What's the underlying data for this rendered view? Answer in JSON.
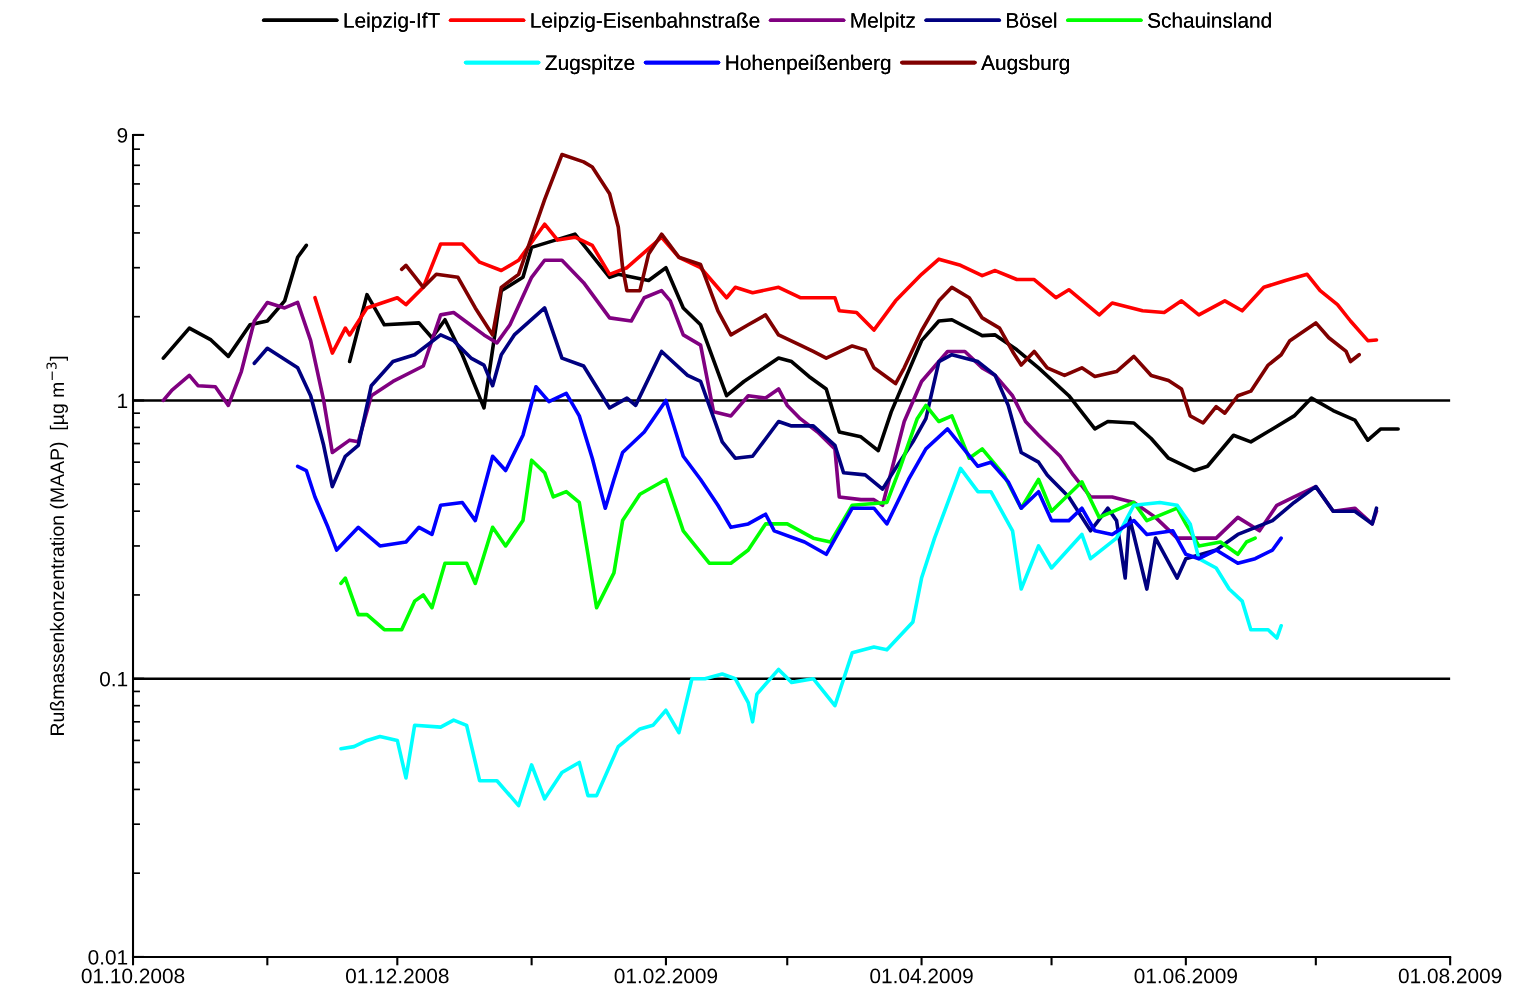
{
  "chart_data": {
    "type": "line",
    "ylabel": "Rußmassenkonzentration (MAAP)  [µg m$^{−3}$]",
    "log": "y",
    "legend": "top",
    "marker": "none",
    "line_style": "solid",
    "xlim": [
      "2008-10-01",
      "2009-08-01"
    ],
    "xticks": [
      {
        "value": "2008-10-01",
        "label": "01.10.2008"
      },
      {
        "value": "2008-11-01",
        "label": null
      },
      {
        "value": "2008-12-01",
        "label": "01.12.2008"
      },
      {
        "value": "2009-01-01",
        "label": null
      },
      {
        "value": "2009-02-01",
        "label": "01.02.2009"
      },
      {
        "value": "2009-03-01",
        "label": null
      },
      {
        "value": "2009-04-01",
        "label": "01.04.2009"
      },
      {
        "value": "2009-05-01",
        "label": null
      },
      {
        "value": "2009-06-01",
        "label": "01.06.2009"
      },
      {
        "value": "2009-07-01",
        "label": null
      },
      {
        "value": "2009-08-01",
        "label": "01.08.2009"
      }
    ],
    "ylim": [
      0.01,
      9
    ],
    "yticks": [
      0.01,
      0.1,
      1,
      9
    ],
    "ref_lines": [
      {
        "axis": "y",
        "value": 0.1,
        "color": "#000000"
      },
      {
        "axis": "y",
        "value": 1,
        "color": "#000000"
      }
    ],
    "series": [
      {
        "name": "Leipzig-IfT",
        "color": "#000000",
        "x": [
          "2008-10-08",
          "2008-10-14",
          "2008-10-19",
          "2008-10-23",
          "2008-10-28",
          "2008-11-01",
          "2008-11-05",
          "2008-11-08",
          "2008-11-10",
          "2008-11-15",
          "2008-11-20",
          "2008-11-24",
          "2008-11-28",
          "2008-12-06",
          "2008-12-09",
          "2008-12-12",
          "2008-12-16",
          "2008-12-21",
          "2008-12-25",
          "2008-12-30",
          "2009-01-01",
          "2009-01-11",
          "2009-01-19",
          "2009-01-21",
          "2009-01-28",
          "2009-02-01",
          "2009-02-05",
          "2009-02-09",
          "2009-02-15",
          "2009-02-19",
          "2009-02-27",
          "2009-03-02",
          "2009-03-06",
          "2009-03-10",
          "2009-03-13",
          "2009-03-18",
          "2009-03-22",
          "2009-03-25",
          "2009-04-01",
          "2009-04-05",
          "2009-04-08",
          "2009-04-15",
          "2009-04-18",
          "2009-04-23",
          "2009-04-28",
          "2009-05-05",
          "2009-05-11",
          "2009-05-14",
          "2009-05-20",
          "2009-05-24",
          "2009-05-28",
          "2009-06-03",
          "2009-06-06",
          "2009-06-12",
          "2009-06-16",
          "2009-06-21",
          "2009-06-26",
          "2009-06-30",
          "2009-07-05",
          "2009-07-10",
          "2009-07-13",
          "2009-07-16",
          "2009-07-20"
        ],
        "values": [
          1.42,
          1.82,
          1.65,
          1.44,
          1.87,
          1.93,
          2.28,
          3.27,
          3.61,
          null,
          1.38,
          2.4,
          1.87,
          1.9,
          1.68,
          1.95,
          1.46,
          0.94,
          2.48,
          2.77,
          3.55,
          3.96,
          2.77,
          2.84,
          2.7,
          3.0,
          2.15,
          1.87,
          1.04,
          1.17,
          1.42,
          1.38,
          1.22,
          1.1,
          0.77,
          0.74,
          0.66,
          0.91,
          1.64,
          1.93,
          1.95,
          1.71,
          1.72,
          1.52,
          1.31,
          1.04,
          0.79,
          0.84,
          0.83,
          0.73,
          0.62,
          0.56,
          0.58,
          0.75,
          0.71,
          0.79,
          0.88,
          1.02,
          0.92,
          0.85,
          0.72,
          0.79,
          0.79
        ]
      },
      {
        "name": "Leipzig-Eisenbahnstraße",
        "color": "#ff0000",
        "x": [
          "2008-11-12",
          "2008-11-16",
          "2008-11-19",
          "2008-11-20",
          "2008-11-24",
          "2008-12-01",
          "2008-12-03",
          "2008-12-07",
          "2008-12-11",
          "2008-12-16",
          "2008-12-20",
          "2008-12-25",
          "2008-12-29",
          "2009-01-04",
          "2009-01-07",
          "2009-01-11",
          "2009-01-15",
          "2009-01-19",
          "2009-01-23",
          "2009-01-31",
          "2009-02-04",
          "2009-02-09",
          "2009-02-15",
          "2009-02-17",
          "2009-02-21",
          "2009-02-27",
          "2009-03-04",
          "2009-03-12",
          "2009-03-13",
          "2009-03-17",
          "2009-03-21",
          "2009-03-26",
          "2009-04-01",
          "2009-04-05",
          "2009-04-10",
          "2009-04-15",
          "2009-04-18",
          "2009-04-23",
          "2009-04-27",
          "2009-05-02",
          "2009-05-05",
          "2009-05-12",
          "2009-05-15",
          "2009-05-22",
          "2009-05-27",
          "2009-05-31",
          "2009-06-04",
          "2009-06-10",
          "2009-06-14",
          "2009-06-19",
          "2009-06-24",
          "2009-06-29",
          "2009-07-02",
          "2009-07-06",
          "2009-07-09",
          "2009-07-13",
          "2009-07-15"
        ],
        "values": [
          2.34,
          1.48,
          1.82,
          1.72,
          2.15,
          2.34,
          2.21,
          2.55,
          3.65,
          3.65,
          3.14,
          2.93,
          3.19,
          4.3,
          3.77,
          3.86,
          3.61,
          2.84,
          3.0,
          3.86,
          3.27,
          3.0,
          2.34,
          2.55,
          2.44,
          2.55,
          2.34,
          2.34,
          2.1,
          2.07,
          1.79,
          2.28,
          2.84,
          3.22,
          3.06,
          2.81,
          2.93,
          2.72,
          2.72,
          2.34,
          2.5,
          2.03,
          2.24,
          2.1,
          2.07,
          2.28,
          2.03,
          2.28,
          2.1,
          2.55,
          2.7,
          2.84,
          2.48,
          2.21,
          1.93,
          1.64,
          1.65
        ]
      },
      {
        "name": "Melpitz",
        "color": "#800080",
        "x": [
          "2008-10-08",
          "2008-10-10",
          "2008-10-14",
          "2008-10-16",
          "2008-10-20",
          "2008-10-23",
          "2008-10-26",
          "2008-10-29",
          "2008-11-01",
          "2008-11-05",
          "2008-11-08",
          "2008-11-11",
          "2008-11-14",
          "2008-11-16",
          "2008-11-20",
          "2008-11-22",
          "2008-11-25",
          "2008-11-30",
          "2008-12-07",
          "2008-12-11",
          "2008-12-14",
          "2008-12-21",
          "2008-12-24",
          "2008-12-27",
          "2009-01-01",
          "2009-01-04",
          "2009-01-08",
          "2009-01-13",
          "2009-01-19",
          "2009-01-24",
          "2009-01-27",
          "2009-01-31",
          "2009-02-02",
          "2009-02-05",
          "2009-02-09",
          "2009-02-12",
          "2009-02-16",
          "2009-02-20",
          "2009-02-24",
          "2009-02-27",
          "2009-03-01",
          "2009-03-04",
          "2009-03-08",
          "2009-03-12",
          "2009-03-13",
          "2009-03-18",
          "2009-03-21",
          "2009-03-23",
          "2009-03-28",
          "2009-04-01",
          "2009-04-07",
          "2009-04-11",
          "2009-04-15",
          "2009-04-18",
          "2009-04-22",
          "2009-04-25",
          "2009-04-28",
          "2009-05-03",
          "2009-05-06",
          "2009-05-10",
          "2009-05-15",
          "2009-05-20",
          "2009-05-25",
          "2009-05-30",
          "2009-06-04",
          "2009-06-08",
          "2009-06-13",
          "2009-06-18",
          "2009-06-22",
          "2009-06-26",
          "2009-07-01",
          "2009-07-05",
          "2009-07-10",
          "2009-07-14",
          "2009-07-15"
        ],
        "values": [
          1.0,
          1.09,
          1.23,
          1.13,
          1.12,
          0.96,
          1.27,
          1.93,
          2.25,
          2.15,
          2.25,
          1.64,
          1.0,
          0.65,
          0.72,
          0.71,
          1.04,
          1.17,
          1.33,
          2.03,
          2.07,
          1.72,
          1.61,
          1.87,
          2.77,
          3.19,
          3.19,
          2.65,
          1.98,
          1.93,
          2.34,
          2.48,
          2.28,
          1.72,
          1.58,
          0.91,
          0.88,
          1.04,
          1.02,
          1.1,
          0.96,
          0.86,
          0.77,
          0.67,
          0.45,
          0.44,
          0.44,
          0.42,
          0.84,
          1.17,
          1.5,
          1.5,
          1.31,
          1.23,
          1.04,
          0.84,
          0.75,
          0.63,
          0.54,
          0.45,
          0.45,
          0.43,
          0.38,
          0.32,
          0.32,
          0.32,
          0.38,
          0.34,
          0.42,
          0.45,
          0.49,
          0.4,
          0.41,
          0.36,
          0.4
        ]
      },
      {
        "name": "Bösel",
        "color": "#000080",
        "x": [
          "2008-10-29",
          "2008-11-01",
          "2008-11-08",
          "2008-11-11",
          "2008-11-14",
          "2008-11-16",
          "2008-11-19",
          "2008-11-22",
          "2008-11-25",
          "2008-11-30",
          "2008-12-05",
          "2008-12-11",
          "2008-12-14",
          "2008-12-18",
          "2008-12-21",
          "2008-12-23",
          "2008-12-25",
          "2008-12-28",
          "2009-01-04",
          "2009-01-08",
          "2009-01-13",
          "2009-01-19",
          "2009-01-23",
          "2009-01-25",
          "2009-01-31",
          "2009-02-06",
          "2009-02-09",
          "2009-02-14",
          "2009-02-17",
          "2009-02-21",
          "2009-02-27",
          "2009-03-02",
          "2009-03-07",
          "2009-03-12",
          "2009-03-14",
          "2009-03-19",
          "2009-03-23",
          "2009-03-26",
          "2009-03-30",
          "2009-04-02",
          "2009-04-05",
          "2009-04-08",
          "2009-04-14",
          "2009-04-18",
          "2009-04-21",
          "2009-04-24",
          "2009-04-28",
          "2009-04-30",
          "2009-05-01",
          "2009-05-05",
          "2009-05-10",
          "2009-05-14",
          "2009-05-16",
          "2009-05-18",
          "2009-05-19",
          "2009-05-23",
          "2009-05-25",
          "2009-05-30",
          "2009-06-01",
          "2009-06-08",
          "2009-06-13",
          "2009-06-21",
          "2009-06-26",
          "2009-07-01",
          "2009-07-05",
          "2009-07-10",
          "2009-07-14",
          "2009-07-15"
        ],
        "values": [
          1.36,
          1.54,
          1.31,
          1.04,
          0.69,
          0.49,
          0.63,
          0.69,
          1.13,
          1.38,
          1.46,
          1.72,
          1.64,
          1.42,
          1.34,
          1.13,
          1.46,
          1.72,
          2.15,
          1.42,
          1.33,
          0.94,
          1.02,
          0.96,
          1.5,
          1.23,
          1.17,
          0.71,
          0.62,
          0.63,
          0.84,
          0.81,
          0.81,
          0.69,
          0.55,
          0.54,
          0.48,
          0.57,
          0.71,
          0.86,
          1.38,
          1.46,
          1.38,
          1.23,
          0.96,
          0.65,
          0.6,
          0.54,
          0.52,
          0.45,
          0.34,
          0.41,
          0.37,
          0.23,
          0.38,
          0.21,
          0.32,
          0.23,
          0.27,
          0.29,
          0.33,
          0.37,
          0.43,
          0.49,
          0.4,
          0.4,
          0.36,
          0.41
        ]
      },
      {
        "name": "Schauinsland",
        "color": "#00ff00",
        "x": [
          "2008-11-18",
          "2008-11-19",
          "2008-11-22",
          "2008-11-24",
          "2008-11-28",
          "2008-12-02",
          "2008-12-05",
          "2008-12-07",
          "2008-12-09",
          "2008-12-12",
          "2008-12-17",
          "2008-12-19",
          "2008-12-23",
          "2008-12-26",
          "2008-12-30",
          "2009-01-01",
          "2009-01-04",
          "2009-01-06",
          "2009-01-09",
          "2009-01-12",
          "2009-01-14",
          "2009-01-16",
          "2009-01-20",
          "2009-01-22",
          "2009-01-26",
          "2009-02-01",
          "2009-02-05",
          "2009-02-11",
          "2009-02-16",
          "2009-02-20",
          "2009-02-24",
          "2009-03-01",
          "2009-03-07",
          "2009-03-11",
          "2009-03-16",
          "2009-03-24",
          "2009-03-27",
          "2009-03-31",
          "2009-04-02",
          "2009-04-05",
          "2009-04-08",
          "2009-04-12",
          "2009-04-15",
          "2009-04-20",
          "2009-04-24",
          "2009-04-28",
          "2009-05-01",
          "2009-05-08",
          "2009-05-12",
          "2009-05-20",
          "2009-05-23",
          "2009-05-30",
          "2009-06-01",
          "2009-06-04",
          "2009-06-09",
          "2009-06-13",
          "2009-06-15",
          "2009-06-17"
        ],
        "values": [
          0.22,
          0.23,
          0.17,
          0.17,
          0.15,
          0.15,
          0.19,
          0.2,
          0.18,
          0.26,
          0.26,
          0.22,
          0.35,
          0.3,
          0.37,
          0.61,
          0.55,
          0.45,
          0.47,
          0.43,
          0.28,
          0.18,
          0.24,
          0.37,
          0.46,
          0.52,
          0.34,
          0.26,
          0.26,
          0.29,
          0.36,
          0.36,
          0.32,
          0.31,
          0.42,
          0.43,
          0.57,
          0.86,
          0.96,
          0.84,
          0.88,
          0.62,
          0.67,
          0.54,
          0.41,
          0.52,
          0.4,
          0.51,
          0.38,
          0.43,
          0.37,
          0.41,
          0.36,
          0.3,
          0.31,
          0.28,
          0.31,
          0.32
        ]
      },
      {
        "name": "Zugspitze",
        "color": "#00ffff",
        "x": [
          "2008-11-18",
          "2008-11-21",
          "2008-11-24",
          "2008-11-27",
          "2008-12-01",
          "2008-12-03",
          "2008-12-05",
          "2008-12-11",
          "2008-12-14",
          "2008-12-17",
          "2008-12-20",
          "2008-12-24",
          "2008-12-29",
          "2009-01-01",
          "2009-01-04",
          "2009-01-08",
          "2009-01-12",
          "2009-01-14",
          "2009-01-16",
          "2009-01-21",
          "2009-01-26",
          "2009-01-29",
          "2009-02-01",
          "2009-02-04",
          "2009-02-07",
          "2009-02-10",
          "2009-02-14",
          "2009-02-17",
          "2009-02-20",
          "2009-02-21",
          "2009-02-22",
          "2009-02-27",
          "2009-03-02",
          "2009-03-07",
          "2009-03-12",
          "2009-03-16",
          "2009-03-21",
          "2009-03-24",
          "2009-03-30",
          "2009-04-01",
          "2009-04-04",
          "2009-04-10",
          "2009-04-14",
          "2009-04-17",
          "2009-04-22",
          "2009-04-24",
          "2009-04-28",
          "2009-05-01",
          "2009-05-08",
          "2009-05-10",
          "2009-05-16",
          "2009-05-20",
          "2009-05-26",
          "2009-05-30",
          "2009-06-02",
          "2009-06-04",
          "2009-06-08",
          "2009-06-11",
          "2009-06-14",
          "2009-06-16",
          "2009-06-20",
          "2009-06-22",
          "2009-06-23"
        ],
        "values": [
          0.056,
          0.057,
          0.06,
          0.062,
          0.06,
          0.044,
          0.068,
          0.067,
          0.071,
          0.068,
          0.043,
          0.043,
          0.035,
          0.049,
          0.037,
          0.046,
          0.05,
          0.038,
          0.038,
          0.057,
          0.066,
          0.068,
          0.077,
          0.064,
          0.1,
          0.1,
          0.104,
          0.1,
          0.082,
          0.07,
          0.088,
          0.108,
          0.097,
          0.1,
          0.08,
          0.124,
          0.13,
          0.127,
          0.16,
          0.23,
          0.32,
          0.57,
          0.47,
          0.47,
          0.34,
          0.21,
          0.3,
          0.25,
          0.33,
          0.27,
          0.32,
          0.42,
          0.43,
          0.42,
          0.36,
          0.27,
          0.25,
          0.21,
          0.19,
          0.15,
          0.15,
          0.14,
          0.155
        ]
      },
      {
        "name": "Hohenpeißenberg",
        "color": "#0000ff",
        "x": [
          "2008-11-08",
          "2008-11-10",
          "2008-11-12",
          "2008-11-15",
          "2008-11-17",
          "2008-11-22",
          "2008-11-27",
          "2008-12-03",
          "2008-12-06",
          "2008-12-09",
          "2008-12-11",
          "2008-12-16",
          "2008-12-19",
          "2008-12-23",
          "2008-12-26",
          "2008-12-30",
          "2009-01-02",
          "2009-01-05",
          "2009-01-09",
          "2009-01-12",
          "2009-01-15",
          "2009-01-18",
          "2009-01-20",
          "2009-01-22",
          "2009-01-27",
          "2009-02-01",
          "2009-02-05",
          "2009-02-09",
          "2009-02-13",
          "2009-02-16",
          "2009-02-20",
          "2009-02-24",
          "2009-02-26",
          "2009-03-05",
          "2009-03-10",
          "2009-03-16",
          "2009-03-21",
          "2009-03-24",
          "2009-03-29",
          "2009-04-02",
          "2009-04-07",
          "2009-04-14",
          "2009-04-17",
          "2009-04-21",
          "2009-04-24",
          "2009-04-28",
          "2009-05-01",
          "2009-05-05",
          "2009-05-08",
          "2009-05-11",
          "2009-05-15",
          "2009-05-20",
          "2009-05-23",
          "2009-05-29",
          "2009-06-01",
          "2009-06-04",
          "2009-06-08",
          "2009-06-13",
          "2009-06-17",
          "2009-06-21",
          "2009-06-23"
        ],
        "values": [
          0.58,
          0.56,
          0.45,
          0.35,
          0.29,
          0.35,
          0.3,
          0.31,
          0.35,
          0.33,
          0.42,
          0.43,
          0.37,
          0.63,
          0.56,
          0.75,
          1.12,
          0.99,
          1.06,
          0.88,
          0.62,
          0.41,
          0.52,
          0.65,
          0.77,
          1.0,
          0.63,
          0.52,
          0.42,
          0.35,
          0.36,
          0.39,
          0.34,
          0.31,
          0.28,
          0.41,
          0.41,
          0.36,
          0.52,
          0.67,
          0.79,
          0.58,
          0.6,
          0.51,
          0.41,
          0.47,
          0.37,
          0.37,
          0.41,
          0.34,
          0.33,
          0.37,
          0.33,
          0.34,
          0.28,
          0.27,
          0.29,
          0.26,
          0.27,
          0.29,
          0.32
        ]
      },
      {
        "name": "Augsburg",
        "color": "#800000",
        "x": [
          "2008-12-02",
          "2008-12-03",
          "2008-12-07",
          "2008-12-10",
          "2008-12-15",
          "2008-12-19",
          "2008-12-23",
          "2008-12-25",
          "2008-12-29",
          "2009-01-04",
          "2009-01-08",
          "2009-01-13",
          "2009-01-15",
          "2009-01-19",
          "2009-01-21",
          "2009-01-22",
          "2009-01-23",
          "2009-01-26",
          "2009-01-28",
          "2009-01-31",
          "2009-02-04",
          "2009-02-09",
          "2009-02-13",
          "2009-02-16",
          "2009-02-20",
          "2009-02-24",
          "2009-02-27",
          "2009-03-04",
          "2009-03-07",
          "2009-03-10",
          "2009-03-16",
          "2009-03-19",
          "2009-03-21",
          "2009-03-26",
          "2009-03-28",
          "2009-04-01",
          "2009-04-05",
          "2009-04-08",
          "2009-04-12",
          "2009-04-15",
          "2009-04-19",
          "2009-04-22",
          "2009-04-24",
          "2009-04-27",
          "2009-04-30",
          "2009-05-04",
          "2009-05-08",
          "2009-05-11",
          "2009-05-16",
          "2009-05-20",
          "2009-05-24",
          "2009-05-28",
          "2009-05-31",
          "2009-06-02",
          "2009-06-05",
          "2009-06-08",
          "2009-06-10",
          "2009-06-13",
          "2009-06-16",
          "2009-06-20",
          "2009-06-23",
          "2009-06-25",
          "2009-07-01",
          "2009-07-04",
          "2009-07-08",
          "2009-07-09",
          "2009-07-11"
        ],
        "values": [
          2.96,
          3.06,
          2.55,
          2.84,
          2.77,
          2.15,
          1.72,
          2.55,
          2.84,
          5.27,
          7.65,
          7.2,
          6.9,
          5.53,
          4.2,
          3.0,
          2.48,
          2.48,
          3.36,
          3.96,
          3.27,
          3.08,
          2.1,
          1.72,
          1.87,
          2.03,
          1.72,
          1.58,
          1.5,
          1.42,
          1.57,
          1.52,
          1.31,
          1.15,
          1.31,
          1.78,
          2.28,
          2.55,
          2.34,
          1.98,
          1.82,
          1.5,
          1.34,
          1.5,
          1.31,
          1.23,
          1.31,
          1.22,
          1.27,
          1.44,
          1.23,
          1.18,
          1.1,
          0.88,
          0.83,
          0.95,
          0.9,
          1.04,
          1.08,
          1.34,
          1.46,
          1.64,
          1.9,
          1.68,
          1.5,
          1.38,
          1.46
        ]
      }
    ]
  }
}
